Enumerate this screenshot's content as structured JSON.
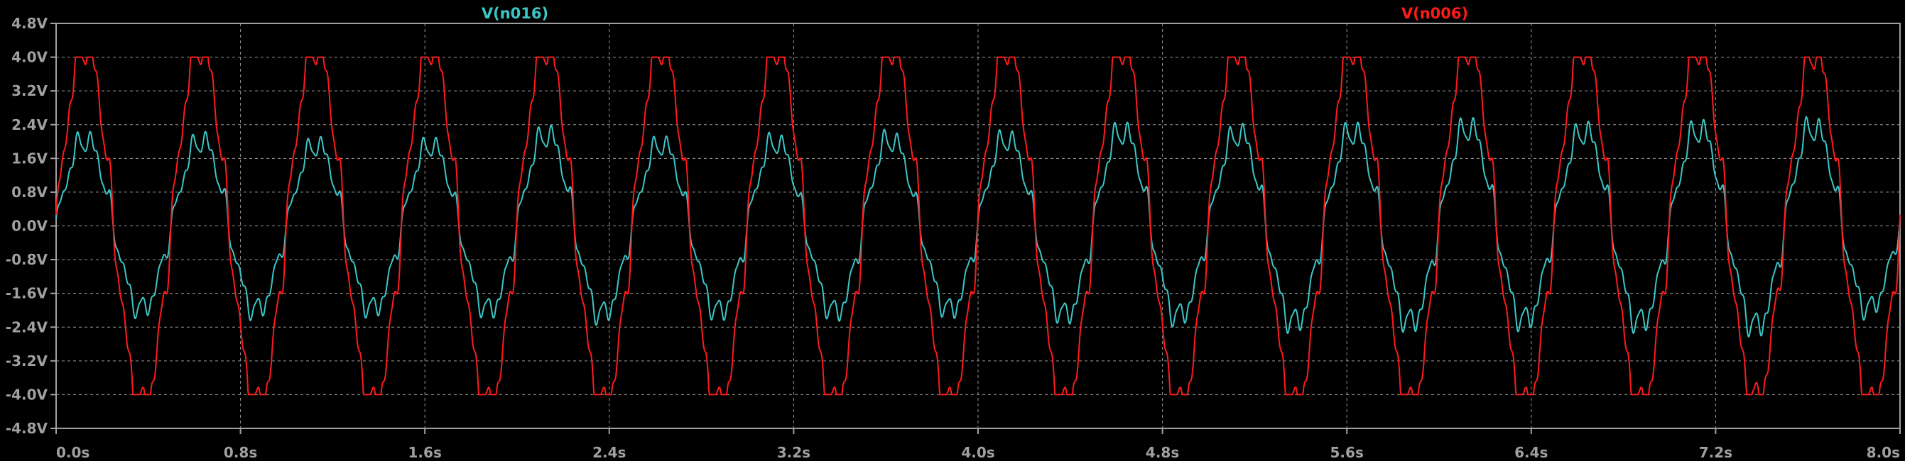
{
  "chart_data": {
    "type": "line",
    "background": "#000000",
    "grid": true,
    "grid_color": "#9a9a9a",
    "axis_color": "#a0a0a0",
    "xlim": [
      0,
      8.0
    ],
    "ylim": [
      -4.8,
      4.8
    ],
    "x_ticks": [
      "0.0s",
      "0.8s",
      "1.6s",
      "2.4s",
      "3.2s",
      "4.0s",
      "4.8s",
      "5.6s",
      "6.4s",
      "7.2s",
      "8.0s"
    ],
    "y_ticks": [
      "4.8V",
      "4.0V",
      "3.2V",
      "2.4V",
      "1.6V",
      "0.8V",
      "0.0V",
      "-0.8V",
      "-1.6V",
      "-2.4V",
      "-3.2V",
      "-4.0V",
      "-4.8V"
    ],
    "series": [
      {
        "name": "V(n016)",
        "color": "#3cc6c6",
        "amplitudes": [
          2.0,
          2.1,
          1.85,
          2.2,
          1.8,
          2.05,
          1.9,
          1.95,
          2.05,
          2.3,
          1.9,
          2.0,
          2.1,
          1.9,
          2.2,
          1.9,
          2.1,
          2.05,
          2.2,
          2.3,
          2.0,
          2.4,
          2.2,
          2.3,
          2.3,
          2.4,
          2.1,
          2.4,
          2.2,
          2.4,
          2.4,
          2.3,
          1.6
        ]
      },
      {
        "name": "V(n006)",
        "color": "#ff1a1a",
        "clip": 4.0,
        "amplitudes": [
          4.3,
          4.3,
          4.3,
          4.3,
          4.3,
          4.3,
          4.3,
          4.3,
          4.3,
          4.3,
          4.3,
          4.3,
          4.3,
          4.3,
          4.3,
          4.3,
          4.3,
          4.3,
          4.3,
          4.3,
          4.3,
          4.3,
          4.3,
          4.3,
          4.3,
          4.3,
          4.3,
          4.3,
          4.3,
          4.3,
          4.05,
          4.3,
          4.3
        ]
      }
    ],
    "period_s": 0.5
  }
}
